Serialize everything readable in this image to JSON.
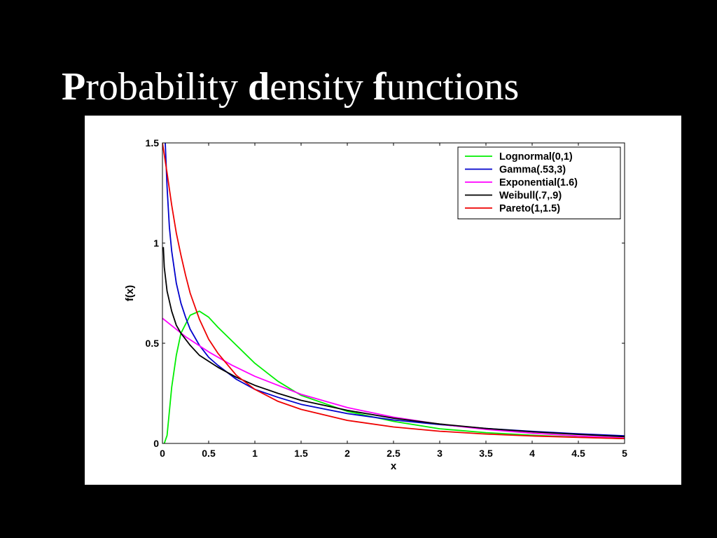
{
  "slide": {
    "title_parts": [
      {
        "text": "P",
        "bold": true
      },
      {
        "text": "robability ",
        "bold": false
      },
      {
        "text": "d",
        "bold": true
      },
      {
        "text": "ensity ",
        "bold": false
      },
      {
        "text": "f",
        "bold": true
      },
      {
        "text": "unctions",
        "bold": false
      }
    ],
    "background": "#000000",
    "title_color": "#ffffff"
  },
  "chart_data": {
    "type": "line",
    "title": "",
    "xlabel": "x",
    "ylabel": "f(x)",
    "xlim": [
      0,
      5
    ],
    "ylim": [
      0,
      1.5
    ],
    "xticks": [
      0,
      0.5,
      1,
      1.5,
      2,
      2.5,
      3,
      3.5,
      4,
      4.5,
      5
    ],
    "xtick_labels": [
      "0",
      "0.5",
      "1",
      "1.5",
      "2",
      "2.5",
      "3",
      "3.5",
      "4",
      "4.5",
      "5"
    ],
    "yticks": [
      0,
      0.5,
      1,
      1.5
    ],
    "ytick_labels": [
      "0",
      "0.5",
      "1",
      "1.5"
    ],
    "grid": false,
    "legend_position": "top-right",
    "series": [
      {
        "name": "Lognormal(0,1)",
        "color": "#00ee00",
        "x": [
          0.02,
          0.05,
          0.1,
          0.15,
          0.2,
          0.3,
          0.4,
          0.5,
          0.6,
          0.8,
          1,
          1.25,
          1.5,
          2,
          2.5,
          3,
          3.5,
          4,
          4.5,
          5
        ],
        "y": [
          0.0,
          0.04,
          0.28,
          0.44,
          0.55,
          0.64,
          0.66,
          0.63,
          0.58,
          0.49,
          0.4,
          0.31,
          0.24,
          0.16,
          0.11,
          0.073,
          0.054,
          0.041,
          0.031,
          0.024
        ]
      },
      {
        "name": "Gamma(.53,3)",
        "color": "#0000cc",
        "x": [
          0.03,
          0.05,
          0.075,
          0.1,
          0.15,
          0.2,
          0.25,
          0.3,
          0.4,
          0.5,
          0.6,
          0.8,
          1,
          1.25,
          1.5,
          2,
          2.5,
          3,
          3.5,
          4,
          4.5,
          5
        ],
        "y": [
          1.5,
          1.28,
          1.08,
          0.96,
          0.8,
          0.7,
          0.63,
          0.57,
          0.49,
          0.43,
          0.39,
          0.32,
          0.27,
          0.23,
          0.195,
          0.149,
          0.117,
          0.094,
          0.075,
          0.06,
          0.048,
          0.038
        ]
      },
      {
        "name": "Exponential(1.6)",
        "color": "#ff00ff",
        "x": [
          0,
          0.25,
          0.5,
          0.75,
          1,
          1.5,
          2,
          2.5,
          3,
          3.5,
          4,
          4.5,
          5
        ],
        "y": [
          0.625,
          0.533,
          0.457,
          0.391,
          0.335,
          0.245,
          0.179,
          0.131,
          0.096,
          0.07,
          0.051,
          0.037,
          0.027
        ]
      },
      {
        "name": "Weibull(.7,.9)",
        "color": "#000000",
        "x": [
          0.01,
          0.02,
          0.05,
          0.1,
          0.15,
          0.2,
          0.3,
          0.4,
          0.5,
          0.6,
          0.8,
          1,
          1.25,
          1.5,
          2,
          2.5,
          3,
          3.5,
          4,
          4.5,
          5
        ],
        "y": [
          0.98,
          0.88,
          0.76,
          0.66,
          0.59,
          0.55,
          0.49,
          0.44,
          0.41,
          0.38,
          0.33,
          0.29,
          0.25,
          0.215,
          0.165,
          0.126,
          0.097,
          0.075,
          0.058,
          0.045,
          0.034
        ]
      },
      {
        "name": "Pareto(1,1.5)",
        "color": "#ee0000",
        "x": [
          0,
          0.05,
          0.1,
          0.15,
          0.2,
          0.25,
          0.3,
          0.4,
          0.5,
          0.6,
          0.8,
          1,
          1.25,
          1.5,
          2,
          2.5,
          3,
          3.5,
          4,
          4.5,
          5
        ],
        "y": [
          1.5,
          1.35,
          1.19,
          1.05,
          0.94,
          0.84,
          0.75,
          0.62,
          0.52,
          0.45,
          0.34,
          0.27,
          0.21,
          0.17,
          0.115,
          0.082,
          0.061,
          0.047,
          0.037,
          0.03,
          0.024
        ]
      }
    ]
  }
}
